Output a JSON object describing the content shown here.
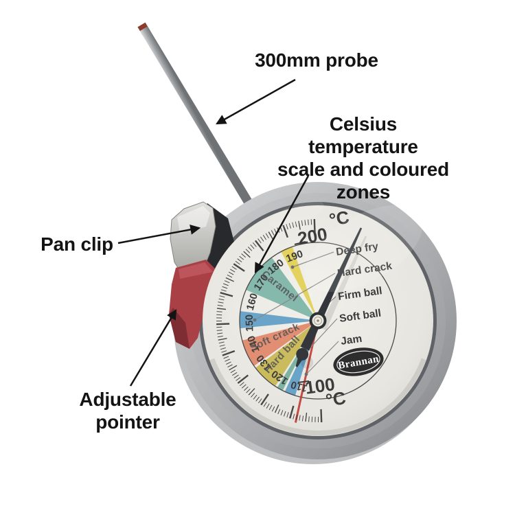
{
  "annotations": {
    "probe": {
      "label": "300mm probe"
    },
    "scale": {
      "line1": "Celsius temperature",
      "line2": "scale and coloured",
      "line3": "zones"
    },
    "pan_clip": {
      "label": "Pan clip"
    },
    "adjustable_pointer": {
      "line1": "Adjustable",
      "line2": "pointer"
    }
  },
  "dial": {
    "brand": "Brannan",
    "unit_top": "°C",
    "unit_bottom": "°C",
    "min_label": "100",
    "max_label": "200",
    "scale": {
      "min": 100,
      "max": 200,
      "minor_step": 1,
      "mid_step": 5,
      "major_step": 10
    },
    "mid_numbers": [
      "110",
      "120",
      "130",
      "140",
      "150",
      "160",
      "170",
      "180",
      "190"
    ],
    "zones": [
      {
        "label": "Caramel",
        "from": 164,
        "to": 181,
        "color": "#7cb4a6"
      },
      {
        "label": "",
        "from": 185.5,
        "to": 190.5,
        "color": "#e3cf52"
      },
      {
        "label": "",
        "from": 148,
        "to": 155,
        "color": "#5e9dc6"
      },
      {
        "label": "Soft crack",
        "from": 131.5,
        "to": 143,
        "color": "#df8668"
      },
      {
        "label": "Hard ball",
        "from": 119.5,
        "to": 130.5,
        "color": "#c7b751"
      },
      {
        "label": "",
        "from": 116,
        "to": 118.5,
        "color": "#74ac9d"
      },
      {
        "label": "",
        "from": 110.5,
        "to": 115,
        "color": "#5e9dc6"
      }
    ],
    "pointer_line": {
      "temp": 108,
      "color": "#c23b33"
    },
    "stages": [
      {
        "label": "Deep fry"
      },
      {
        "label": "Hard crack"
      },
      {
        "label": "Firm ball"
      },
      {
        "label": "Soft ball"
      },
      {
        "label": "Jam"
      }
    ]
  },
  "colors": {
    "annotation_text": "#141414",
    "dial_text": "#3c3c3c",
    "needle": "#33373c",
    "pointer_red": "#c23b33",
    "clip_red": "#a84046"
  }
}
